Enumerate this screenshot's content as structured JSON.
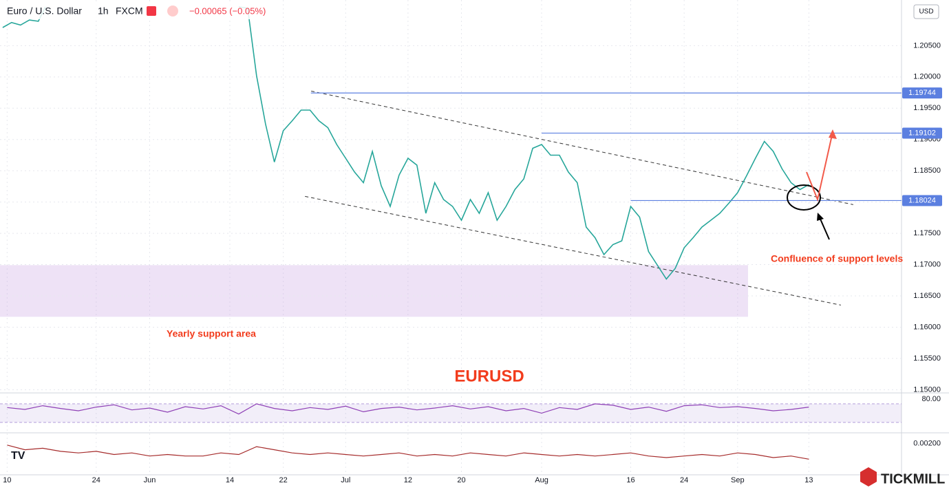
{
  "header": {
    "symbol": "Euro / U.S. Dollar",
    "interval": "1h",
    "source": "FXCM",
    "change": "−0.00065 (−0.05%)",
    "currency": "USD",
    "brand": "TICKMILL"
  },
  "chart_data": [
    {
      "type": "line",
      "color": "#26a69a",
      "grid": true,
      "x": [
        -0.5,
        0.5,
        1.5,
        2.5,
        3.5,
        4.3,
        5,
        26,
        27,
        28,
        29,
        30,
        31,
        32,
        33,
        34,
        35,
        36,
        37,
        38,
        39,
        40,
        41,
        42,
        43,
        44,
        45,
        46,
        47,
        48,
        49,
        50,
        51,
        52,
        53,
        54,
        55,
        56,
        57,
        58,
        59,
        60,
        61,
        62,
        63,
        64,
        65,
        66,
        67,
        68,
        69,
        70,
        71,
        72,
        73,
        74,
        75,
        76,
        77,
        78,
        79,
        80,
        81,
        82,
        83,
        84,
        85,
        86,
        87,
        88,
        89,
        90
      ],
      "values": [
        1.2079,
        1.2087,
        1.2083,
        1.2091,
        1.2089,
        1.2112,
        null,
        1.2112,
        1.211,
        1.2002,
        1.1925,
        1.1864,
        1.1914,
        1.193,
        1.1947,
        1.1947,
        1.193,
        1.1919,
        1.1892,
        1.187,
        1.1848,
        1.1831,
        1.1881,
        1.1826,
        1.1793,
        1.1843,
        1.187,
        1.1859,
        1.1782,
        1.1831,
        1.1804,
        1.1793,
        1.1771,
        1.1804,
        1.1782,
        1.1815,
        1.1771,
        1.1793,
        1.182,
        1.1837,
        1.1886,
        1.1892,
        1.1875,
        1.1875,
        1.1848,
        1.1831,
        1.176,
        1.1743,
        1.1716,
        1.1732,
        1.1738,
        1.1793,
        1.1776,
        1.1721,
        1.1699,
        1.1677,
        1.1694,
        1.1727,
        1.1743,
        1.176,
        1.1771,
        1.1782,
        1.1798,
        1.1815,
        1.1842,
        1.187,
        1.1897,
        1.1881,
        1.1853,
        1.1831,
        1.182,
        1.1828
      ],
      "xlim": [
        -0.8,
        100.4
      ],
      "ylim": [
        1.1496,
        1.2123
      ],
      "xticks": [
        {
          "value": 0,
          "label": "10"
        },
        {
          "value": 10,
          "label": "24"
        },
        {
          "value": 16,
          "label": "Jun"
        },
        {
          "value": 25,
          "label": "14"
        },
        {
          "value": 31,
          "label": "22"
        },
        {
          "value": 38,
          "label": "Jul"
        },
        {
          "value": 45,
          "label": "12"
        },
        {
          "value": 51,
          "label": "20"
        },
        {
          "value": 60,
          "label": "Aug"
        },
        {
          "value": 70,
          "label": "16"
        },
        {
          "value": 76,
          "label": "24"
        },
        {
          "value": 82,
          "label": "Sep"
        },
        {
          "value": 90,
          "label": "13"
        }
      ],
      "yticks": [
        {
          "value": 1.15,
          "label": "1.15000"
        },
        {
          "value": 1.155,
          "label": "1.15500"
        },
        {
          "value": 1.16,
          "label": "1.16000"
        },
        {
          "value": 1.165,
          "label": "1.16500"
        },
        {
          "value": 1.17,
          "label": "1.17000"
        },
        {
          "value": 1.175,
          "label": "1.17500"
        },
        {
          "value": 1.18,
          "label": "1.18000"
        },
        {
          "value": 1.185,
          "label": "1.18500"
        },
        {
          "value": 1.19,
          "label": "1.19000"
        },
        {
          "value": 1.195,
          "label": "1.19500"
        },
        {
          "value": 1.2,
          "label": "1.20000"
        },
        {
          "value": 1.205,
          "label": "1.20500"
        }
      ],
      "levels": [
        {
          "value": 1.19744,
          "start": 34.1
        },
        {
          "value": 1.19102,
          "start": 60
        },
        {
          "value": 1.18024,
          "start": 70
        }
      ],
      "level_color": "#5b7fe0",
      "trendlines": [
        {
          "x": [
            34.13,
            94.98
          ],
          "y": [
            1.19774,
            1.17959
          ]
        },
        {
          "x": [
            33.44,
            93.59
          ],
          "y": [
            1.18091,
            1.16353
          ]
        }
      ],
      "zones": [
        {
          "x": [
            -0.8,
            83.17
          ],
          "y": [
            1.16166,
            1.16991
          ],
          "color": "rgba(200,160,225,0.3)"
        }
      ],
      "annotations": [
        "Yearly support area",
        "Confluence of support levels",
        "EURUSD"
      ]
    },
    {
      "type": "line",
      "color": "#8e3fb5",
      "x": [
        0,
        2,
        4,
        6,
        8,
        10,
        12,
        14,
        16,
        18,
        20,
        22,
        24,
        26,
        28,
        30,
        32,
        34,
        36,
        38,
        40,
        42,
        44,
        46,
        48,
        50,
        52,
        54,
        56,
        58,
        60,
        62,
        64,
        66,
        68,
        70,
        72,
        74,
        76,
        78,
        80,
        82,
        84,
        86,
        88,
        90
      ],
      "values": [
        62,
        58,
        66,
        60,
        55,
        63,
        68,
        57,
        61,
        52,
        64,
        59,
        66,
        48,
        70,
        60,
        55,
        62,
        58,
        65,
        53,
        60,
        63,
        57,
        61,
        66,
        59,
        64,
        55,
        60,
        50,
        62,
        58,
        70,
        67,
        58,
        63,
        54,
        66,
        68,
        62,
        64,
        60,
        55,
        58,
        63
      ],
      "xlim": [
        -0.8,
        100.4
      ],
      "ylim": [
        8.9,
        92.2
      ],
      "band": [
        30,
        70
      ],
      "yticks": [
        {
          "value": 80,
          "label": "80.00"
        }
      ]
    },
    {
      "type": "line",
      "color": "#a52a2a",
      "x": [
        0,
        2,
        4,
        6,
        8,
        10,
        12,
        14,
        16,
        18,
        20,
        22,
        24,
        26,
        28,
        30,
        32,
        34,
        36,
        38,
        40,
        42,
        44,
        46,
        48,
        50,
        52,
        54,
        56,
        58,
        60,
        62,
        64,
        66,
        68,
        70,
        72,
        74,
        76,
        78,
        80,
        82,
        84,
        86,
        88,
        90
      ],
      "values": [
        0.0019,
        0.0016,
        0.0017,
        0.0015,
        0.0014,
        0.0015,
        0.0013,
        0.0014,
        0.0012,
        0.0013,
        0.0012,
        0.0012,
        0.0014,
        0.0013,
        0.0018,
        0.0016,
        0.0014,
        0.0013,
        0.0014,
        0.0013,
        0.0012,
        0.0013,
        0.0014,
        0.0012,
        0.0013,
        0.0012,
        0.0014,
        0.0013,
        0.0012,
        0.0014,
        0.0013,
        0.0012,
        0.0013,
        0.0012,
        0.0013,
        0.0014,
        0.0012,
        0.0011,
        0.0012,
        0.0013,
        0.0012,
        0.0014,
        0.0013,
        0.0011,
        0.0012,
        0.001
      ],
      "xlim": [
        -0.8,
        100.4
      ],
      "ylim": [
        0,
        0.00264
      ],
      "yticks": [
        {
          "value": 0.002,
          "label": "0.00200"
        }
      ]
    }
  ]
}
